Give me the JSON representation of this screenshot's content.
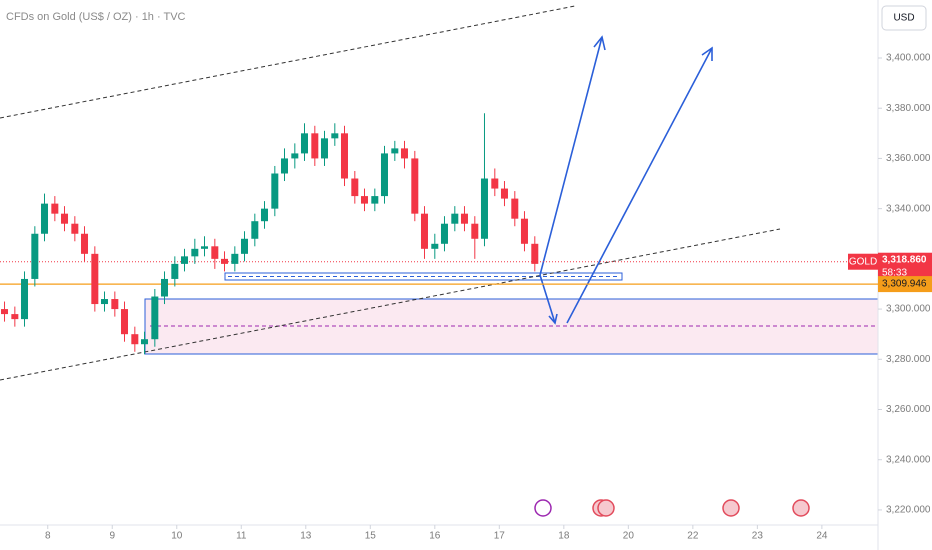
{
  "chart_data": {
    "type": "candlestick",
    "title": "CFDs on Gold (US$ / OZ) · 1h · TVC",
    "currency": "USD",
    "up_color": "#089981",
    "down_color": "#f23645",
    "x": [
      0.33,
      0.49,
      0.64,
      0.8,
      0.95,
      1.11,
      1.26,
      1.42,
      1.57,
      1.73,
      1.88,
      2.04,
      2.19,
      2.35,
      2.5,
      2.66,
      2.81,
      2.97,
      3.12,
      3.28,
      3.43,
      3.59,
      3.74,
      3.9,
      4.05,
      4.21,
      4.36,
      4.52,
      4.67,
      4.83,
      4.98,
      5.14,
      5.29,
      5.45,
      5.6,
      5.76,
      5.91,
      6.07,
      6.22,
      6.38,
      6.53,
      6.69,
      6.84,
      7.0,
      7.15,
      7.31,
      7.46,
      7.62,
      7.77,
      7.93,
      8.08,
      8.24,
      8.39,
      8.55
    ],
    "open": [
      3300,
      3298,
      3296,
      3312,
      3330,
      3342,
      3338,
      3334,
      3330,
      3322,
      3302,
      3304,
      3300,
      3290,
      3286,
      3288,
      3305,
      3312,
      3318,
      3321,
      3324,
      3325,
      3320,
      3318,
      3322,
      3328,
      3335,
      3340,
      3354,
      3360,
      3362,
      3370,
      3360,
      3368,
      3370,
      3352,
      3345,
      3342,
      3345,
      3362,
      3364,
      3360,
      3338,
      3324,
      3326,
      3334,
      3338,
      3334,
      3328,
      3352,
      3348,
      3344,
      3336,
      3326
    ],
    "high": [
      3303,
      3301,
      3315,
      3333,
      3346,
      3345,
      3341,
      3337,
      3333,
      3325,
      3307,
      3307,
      3303,
      3293,
      3291,
      3308,
      3315,
      3321,
      3324,
      3328,
      3329,
      3328,
      3323,
      3325,
      3331,
      3338,
      3343,
      3357,
      3364,
      3366,
      3374,
      3373,
      3371,
      3374,
      3373,
      3355,
      3348,
      3348,
      3365,
      3367,
      3367,
      3363,
      3341,
      3330,
      3337,
      3341,
      3341,
      3337,
      3378,
      3356,
      3351,
      3347,
      3339,
      3329
    ],
    "low": [
      3295,
      3293,
      3293,
      3309,
      3327,
      3335,
      3331,
      3327,
      3319,
      3299,
      3299,
      3297,
      3287,
      3283,
      3282,
      3285,
      3302,
      3309,
      3315,
      3318,
      3321,
      3316,
      3315,
      3315,
      3319,
      3325,
      3332,
      3337,
      3351,
      3356,
      3359,
      3357,
      3357,
      3365,
      3349,
      3342,
      3339,
      3339,
      3342,
      3359,
      3356,
      3335,
      3320,
      3320,
      3323,
      3331,
      3331,
      3320,
      3325,
      3345,
      3341,
      3333,
      3323,
      3315
    ],
    "close": [
      3298,
      3296,
      3312,
      3330,
      3342,
      3338,
      3334,
      3330,
      3322,
      3302,
      3304,
      3300,
      3290,
      3286,
      3288,
      3305,
      3312,
      3318,
      3321,
      3324,
      3325,
      3320,
      3318,
      3322,
      3328,
      3335,
      3340,
      3354,
      3360,
      3362,
      3370,
      3360,
      3368,
      3370,
      3352,
      3345,
      3342,
      3345,
      3362,
      3364,
      3360,
      3338,
      3324,
      3326,
      3334,
      3338,
      3334,
      3328,
      3352,
      3348,
      3344,
      3336,
      3326,
      3318
    ],
    "xlim": [
      0.26,
      13.87
    ],
    "xticks": [
      {
        "value": 1,
        "label": "8"
      },
      {
        "value": 2,
        "label": "9"
      },
      {
        "value": 3,
        "label": "10"
      },
      {
        "value": 4,
        "label": "11"
      },
      {
        "value": 5,
        "label": "13"
      },
      {
        "value": 6,
        "label": "15"
      },
      {
        "value": 7,
        "label": "16"
      },
      {
        "value": 8,
        "label": "17"
      },
      {
        "value": 9,
        "label": "18"
      },
      {
        "value": 10,
        "label": "20"
      },
      {
        "value": 11,
        "label": "22"
      },
      {
        "value": 12,
        "label": "23"
      },
      {
        "value": 13,
        "label": "24"
      }
    ],
    "ylim": [
      3214,
      3423.1
    ],
    "yticks": [
      {
        "value": 3220,
        "label": "3,220.000"
      },
      {
        "value": 3240,
        "label": "3,240.000"
      },
      {
        "value": 3260,
        "label": "3,260.000"
      },
      {
        "value": 3280,
        "label": "3,280.000"
      },
      {
        "value": 3300,
        "label": "3,300.000"
      },
      {
        "value": 3320,
        "label": "3,320.000"
      },
      {
        "value": 3340,
        "label": "3,340.000"
      },
      {
        "value": 3360,
        "label": "3,360.000"
      },
      {
        "value": 3380,
        "label": "3,380.000"
      },
      {
        "value": 3400,
        "label": "3,400.000"
      }
    ],
    "last_price": {
      "name": "GOLD",
      "value": 3318.86,
      "label": "3,318.860",
      "countdown": "58:33",
      "color": "#f23645"
    },
    "level": {
      "value": 3309.946,
      "label": "3,309.946",
      "color": "#f59d1a"
    },
    "grid": false
  }
}
